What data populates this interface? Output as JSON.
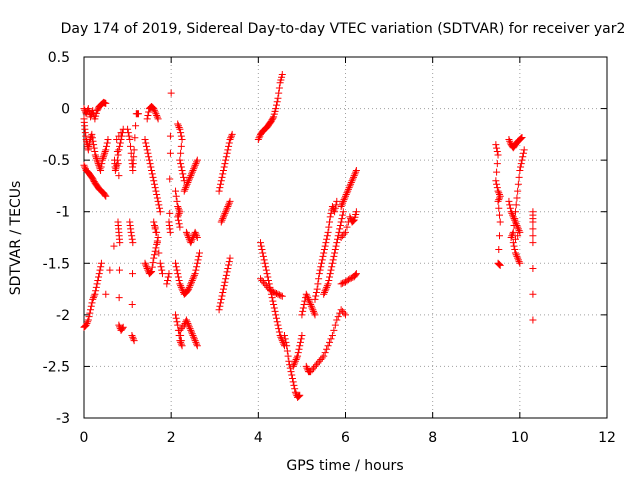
{
  "chart_data": {
    "type": "scatter",
    "title": "Day 174 of 2019, Sidereal Day-to-day VTEC variation (SDTVAR) for receiver yar2",
    "xlabel": "GPS time / hours",
    "ylabel": "SDTVAR / TECUs",
    "xlim": [
      0,
      12
    ],
    "ylim": [
      -3,
      0.5
    ],
    "xticks": [
      0,
      2,
      4,
      6,
      8,
      10,
      12
    ],
    "yticks": [
      0.5,
      0,
      -0.5,
      -1,
      -1.5,
      -2,
      -2.5,
      -3
    ],
    "xtick_labels": [
      "0",
      "2",
      "4",
      "6",
      "8",
      "10",
      "12"
    ],
    "ytick_labels": [
      "0.5",
      "0",
      "-0.5",
      "-1",
      "-1.5",
      "-2",
      "-2.5",
      "-3"
    ],
    "grid": true,
    "marker": "+",
    "color": "#ff0000",
    "series_segments": [
      [
        [
          0.0,
          0.0
        ],
        [
          0.05,
          -0.05
        ],
        [
          0.1,
          0.0
        ],
        [
          0.15,
          -0.08
        ],
        [
          0.2,
          -0.02
        ],
        [
          0.25,
          -0.1
        ],
        [
          0.3,
          -0.02
        ],
        [
          0.35,
          0.02
        ],
        [
          0.4,
          0.04
        ],
        [
          0.45,
          0.06
        ],
        [
          0.5,
          0.05
        ]
      ],
      [
        [
          0.0,
          -0.1
        ],
        [
          0.02,
          -0.2
        ],
        [
          0.05,
          -0.3
        ],
        [
          0.08,
          -0.35
        ],
        [
          0.1,
          -0.4
        ],
        [
          0.14,
          -0.3
        ],
        [
          0.18,
          -0.25
        ],
        [
          0.22,
          -0.35
        ],
        [
          0.26,
          -0.45
        ],
        [
          0.3,
          -0.5
        ],
        [
          0.34,
          -0.55
        ],
        [
          0.38,
          -0.6
        ],
        [
          0.42,
          -0.5
        ],
        [
          0.46,
          -0.45
        ],
        [
          0.5,
          -0.4
        ],
        [
          0.55,
          -0.3
        ]
      ],
      [
        [
          0.0,
          -0.55
        ],
        [
          0.05,
          -0.6
        ],
        [
          0.1,
          -0.62
        ],
        [
          0.15,
          -0.65
        ],
        [
          0.2,
          -0.68
        ],
        [
          0.25,
          -0.72
        ],
        [
          0.3,
          -0.75
        ],
        [
          0.35,
          -0.78
        ],
        [
          0.4,
          -0.8
        ],
        [
          0.45,
          -0.82
        ],
        [
          0.5,
          -0.85
        ]
      ],
      [
        [
          0.0,
          -2.12
        ],
        [
          0.05,
          -2.1
        ],
        [
          0.1,
          -2.05
        ],
        [
          0.15,
          -1.95
        ],
        [
          0.2,
          -1.85
        ],
        [
          0.25,
          -1.8
        ],
        [
          0.3,
          -1.7
        ],
        [
          0.35,
          -1.6
        ],
        [
          0.4,
          -1.5
        ]
      ],
      [
        [
          0.5,
          -1.8
        ],
        [
          0.78,
          -1.1
        ],
        [
          0.8,
          -1.2
        ],
        [
          0.82,
          -1.3
        ],
        [
          0.8,
          -2.1
        ],
        [
          0.85,
          -2.15
        ],
        [
          0.9,
          -2.12
        ]
      ],
      [
        [
          0.7,
          -0.5
        ],
        [
          0.72,
          -0.6
        ],
        [
          0.75,
          -0.55
        ],
        [
          0.8,
          -0.4
        ],
        [
          0.85,
          -0.3
        ],
        [
          0.9,
          -0.2
        ],
        [
          0.75,
          -0.3
        ],
        [
          0.8,
          -0.65
        ]
      ],
      [
        [
          1.0,
          -0.2
        ],
        [
          1.05,
          -0.3
        ],
        [
          1.1,
          -0.5
        ],
        [
          1.12,
          -0.6
        ],
        [
          1.15,
          -0.4
        ],
        [
          1.2,
          -0.05
        ],
        [
          1.25,
          -0.05
        ]
      ],
      [
        [
          1.05,
          -1.1
        ],
        [
          1.08,
          -1.2
        ],
        [
          1.12,
          -1.3
        ],
        [
          1.1,
          -2.2
        ],
        [
          1.15,
          -2.25
        ]
      ],
      [
        [
          1.4,
          -0.3
        ],
        [
          1.45,
          -0.4
        ],
        [
          1.5,
          -0.5
        ],
        [
          1.55,
          -0.6
        ],
        [
          1.6,
          -0.7
        ],
        [
          1.65,
          -0.8
        ],
        [
          1.7,
          -0.9
        ],
        [
          1.75,
          -1.0
        ]
      ],
      [
        [
          1.45,
          -0.1
        ],
        [
          1.5,
          0.0
        ],
        [
          1.55,
          0.02
        ],
        [
          1.6,
          0.0
        ],
        [
          1.65,
          -0.05
        ],
        [
          1.7,
          -0.1
        ]
      ],
      [
        [
          1.4,
          -1.5
        ],
        [
          1.45,
          -1.55
        ],
        [
          1.5,
          -1.6
        ],
        [
          1.55,
          -1.58
        ],
        [
          1.6,
          -1.45
        ],
        [
          1.65,
          -1.35
        ],
        [
          1.7,
          -1.25
        ],
        [
          1.6,
          -1.1
        ],
        [
          1.65,
          -1.2
        ],
        [
          1.75,
          -1.5
        ],
        [
          1.8,
          -1.6
        ]
      ],
      [
        [
          1.9,
          -1.7
        ],
        [
          1.95,
          -1.6
        ],
        [
          2.0,
          0.15
        ],
        [
          1.95,
          -1.1
        ],
        [
          1.98,
          -1.2
        ]
      ],
      [
        [
          2.15,
          -0.15
        ],
        [
          2.2,
          -0.2
        ],
        [
          2.25,
          -0.3
        ],
        [
          2.2,
          -0.5
        ],
        [
          2.25,
          -0.6
        ],
        [
          2.3,
          -0.7
        ]
      ],
      [
        [
          2.1,
          -0.8
        ],
        [
          2.15,
          -0.95
        ],
        [
          2.2,
          -1.0
        ],
        [
          2.15,
          -1.05
        ],
        [
          2.2,
          -1.15
        ]
      ],
      [
        [
          2.1,
          -1.5
        ],
        [
          2.15,
          -1.6
        ],
        [
          2.2,
          -1.7
        ],
        [
          2.25,
          -1.75
        ],
        [
          2.3,
          -1.8
        ],
        [
          2.35,
          -1.78
        ],
        [
          2.4,
          -1.75
        ],
        [
          2.45,
          -1.7
        ],
        [
          2.5,
          -1.65
        ],
        [
          2.55,
          -1.6
        ],
        [
          2.6,
          -1.5
        ],
        [
          2.65,
          -1.4
        ]
      ],
      [
        [
          2.1,
          -2.0
        ],
        [
          2.15,
          -2.1
        ],
        [
          2.2,
          -2.25
        ],
        [
          2.25,
          -2.3
        ],
        [
          2.2,
          -2.15
        ],
        [
          2.3,
          -2.1
        ],
        [
          2.35,
          -2.05
        ],
        [
          2.4,
          -2.1
        ],
        [
          2.45,
          -2.15
        ],
        [
          2.5,
          -2.2
        ],
        [
          2.55,
          -2.25
        ],
        [
          2.6,
          -2.3
        ]
      ],
      [
        [
          2.3,
          -0.8
        ],
        [
          2.35,
          -0.75
        ],
        [
          2.4,
          -0.7
        ],
        [
          2.45,
          -0.65
        ],
        [
          2.5,
          -0.6
        ],
        [
          2.55,
          -0.55
        ],
        [
          2.6,
          -0.5
        ]
      ],
      [
        [
          2.35,
          -1.2
        ],
        [
          2.4,
          -1.25
        ],
        [
          2.45,
          -1.3
        ],
        [
          2.5,
          -1.25
        ],
        [
          2.55,
          -1.2
        ],
        [
          2.6,
          -1.25
        ]
      ],
      [
        [
          3.1,
          -1.95
        ],
        [
          3.15,
          -1.85
        ],
        [
          3.2,
          -1.75
        ],
        [
          3.25,
          -1.65
        ],
        [
          3.3,
          -1.55
        ],
        [
          3.35,
          -1.45
        ]
      ],
      [
        [
          3.1,
          -0.8
        ],
        [
          3.15,
          -0.7
        ],
        [
          3.2,
          -0.6
        ],
        [
          3.25,
          -0.5
        ],
        [
          3.3,
          -0.4
        ],
        [
          3.35,
          -0.3
        ],
        [
          3.4,
          -0.25
        ]
      ],
      [
        [
          3.15,
          -1.1
        ],
        [
          3.2,
          -1.05
        ],
        [
          3.25,
          -1.0
        ],
        [
          3.3,
          -0.95
        ],
        [
          3.35,
          -0.9
        ]
      ],
      [
        [
          4.0,
          -0.3
        ],
        [
          4.05,
          -0.25
        ],
        [
          4.1,
          -0.22
        ],
        [
          4.15,
          -0.2
        ],
        [
          4.2,
          -0.18
        ],
        [
          4.25,
          -0.15
        ],
        [
          4.3,
          -0.12
        ],
        [
          4.35,
          -0.08
        ],
        [
          4.4,
          0.0
        ],
        [
          4.45,
          0.1
        ],
        [
          4.5,
          0.25
        ],
        [
          4.55,
          0.33
        ]
      ],
      [
        [
          4.05,
          -1.3
        ],
        [
          4.1,
          -1.4
        ],
        [
          4.15,
          -1.5
        ],
        [
          4.2,
          -1.6
        ],
        [
          4.25,
          -1.7
        ],
        [
          4.3,
          -1.8
        ],
        [
          4.35,
          -1.9
        ],
        [
          4.4,
          -2.0
        ],
        [
          4.45,
          -2.1
        ],
        [
          4.5,
          -2.2
        ],
        [
          4.55,
          -2.25
        ],
        [
          4.6,
          -2.3
        ]
      ],
      [
        [
          4.05,
          -1.65
        ],
        [
          4.15,
          -1.7
        ],
        [
          4.25,
          -1.75
        ],
        [
          4.35,
          -1.78
        ],
        [
          4.45,
          -1.8
        ],
        [
          4.55,
          -1.82
        ]
      ],
      [
        [
          4.6,
          -2.2
        ],
        [
          4.65,
          -2.3
        ],
        [
          4.7,
          -2.45
        ],
        [
          4.75,
          -2.55
        ],
        [
          4.8,
          -2.65
        ],
        [
          4.85,
          -2.75
        ],
        [
          4.9,
          -2.8
        ],
        [
          4.95,
          -2.78
        ]
      ],
      [
        [
          4.8,
          -2.5
        ],
        [
          4.85,
          -2.45
        ],
        [
          4.9,
          -2.4
        ],
        [
          4.95,
          -2.3
        ],
        [
          5.0,
          -2.2
        ]
      ],
      [
        [
          5.0,
          -2.0
        ],
        [
          5.05,
          -1.9
        ],
        [
          5.1,
          -1.8
        ],
        [
          5.15,
          -1.85
        ],
        [
          5.2,
          -1.9
        ],
        [
          5.25,
          -1.95
        ],
        [
          5.3,
          -2.0
        ]
      ],
      [
        [
          5.1,
          -2.5
        ],
        [
          5.15,
          -2.55
        ],
        [
          5.2,
          -2.55
        ],
        [
          5.3,
          -2.5
        ],
        [
          5.4,
          -2.45
        ],
        [
          5.5,
          -2.4
        ],
        [
          5.6,
          -2.3
        ],
        [
          5.7,
          -2.2
        ],
        [
          5.8,
          -2.05
        ],
        [
          5.9,
          -1.95
        ],
        [
          6.0,
          -2.0
        ]
      ],
      [
        [
          5.3,
          -1.85
        ],
        [
          5.35,
          -1.75
        ],
        [
          5.4,
          -1.6
        ],
        [
          5.45,
          -1.5
        ],
        [
          5.5,
          -1.4
        ],
        [
          5.55,
          -1.3
        ],
        [
          5.6,
          -1.2
        ],
        [
          5.65,
          -1.05
        ],
        [
          5.7,
          -0.95
        ],
        [
          5.75,
          -1.0
        ],
        [
          5.8,
          -0.9
        ]
      ],
      [
        [
          5.5,
          -1.8
        ],
        [
          5.55,
          -1.75
        ],
        [
          5.6,
          -1.7
        ],
        [
          5.65,
          -1.6
        ],
        [
          5.7,
          -1.5
        ],
        [
          5.75,
          -1.4
        ],
        [
          5.8,
          -1.3
        ],
        [
          5.85,
          -1.2
        ],
        [
          5.9,
          -1.1
        ],
        [
          5.95,
          -1.0
        ]
      ],
      [
        [
          5.9,
          -0.95
        ],
        [
          5.95,
          -0.9
        ],
        [
          6.0,
          -0.85
        ],
        [
          6.05,
          -0.8
        ],
        [
          6.1,
          -0.75
        ],
        [
          6.15,
          -0.7
        ],
        [
          6.2,
          -0.65
        ],
        [
          6.25,
          -0.6
        ]
      ],
      [
        [
          5.9,
          -1.25
        ],
        [
          6.0,
          -1.2
        ],
        [
          6.1,
          -1.05
        ],
        [
          6.15,
          -1.1
        ],
        [
          6.2,
          -1.08
        ],
        [
          6.25,
          -1.0
        ]
      ],
      [
        [
          5.9,
          -1.7
        ],
        [
          6.0,
          -1.68
        ],
        [
          6.1,
          -1.65
        ],
        [
          6.2,
          -1.63
        ],
        [
          6.25,
          -1.6
        ]
      ],
      [
        [
          9.45,
          -0.35
        ],
        [
          9.5,
          -0.45
        ],
        [
          9.45,
          -0.7
        ],
        [
          9.5,
          -0.8
        ],
        [
          9.55,
          -0.85
        ],
        [
          9.5,
          -0.9
        ],
        [
          9.55,
          -1.1
        ],
        [
          9.5,
          -1.5
        ],
        [
          9.55,
          -1.52
        ]
      ],
      [
        [
          9.75,
          -0.3
        ],
        [
          9.8,
          -0.35
        ],
        [
          9.85,
          -0.38
        ],
        [
          9.9,
          -0.35
        ],
        [
          9.95,
          -0.32
        ],
        [
          10.0,
          -0.3
        ],
        [
          10.05,
          -0.28
        ]
      ],
      [
        [
          9.75,
          -0.9
        ],
        [
          9.8,
          -1.0
        ],
        [
          9.85,
          -1.05
        ],
        [
          9.9,
          -1.1
        ],
        [
          9.95,
          -1.15
        ],
        [
          10.0,
          -1.2
        ],
        [
          9.85,
          -1.3
        ],
        [
          9.9,
          -1.4
        ],
        [
          9.95,
          -1.45
        ],
        [
          10.0,
          -1.5
        ]
      ],
      [
        [
          9.8,
          -1.25
        ],
        [
          9.85,
          -1.2
        ],
        [
          9.9,
          -1.0
        ],
        [
          9.95,
          -0.8
        ],
        [
          10.0,
          -0.6
        ],
        [
          10.05,
          -0.5
        ],
        [
          10.1,
          -0.4
        ]
      ],
      [
        [
          10.3,
          -1.0
        ],
        [
          10.3,
          -1.1
        ],
        [
          10.3,
          -1.3
        ],
        [
          10.3,
          -2.05
        ]
      ]
    ]
  }
}
